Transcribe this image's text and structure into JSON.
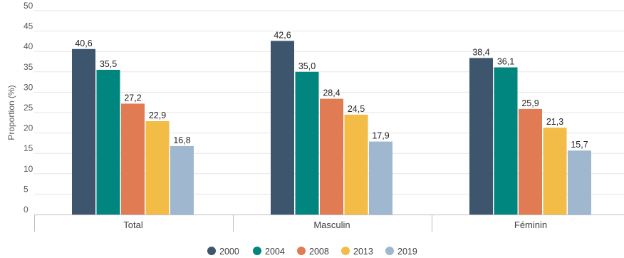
{
  "chart_data": {
    "type": "bar",
    "ylabel": "Proportion (%)",
    "ylim": [
      0,
      50
    ],
    "yticks": [
      0,
      5,
      10,
      15,
      20,
      25,
      30,
      35,
      40,
      45,
      50
    ],
    "grid": true,
    "legend_position": "bottom",
    "categories": [
      "Total",
      "Masculin",
      "Féminin"
    ],
    "series": [
      {
        "name": "2000",
        "color": "#3d566e",
        "values": [
          40.6,
          42.6,
          38.4
        ],
        "labels": [
          "40,6",
          "42,6",
          "38,4"
        ]
      },
      {
        "name": "2004",
        "color": "#00867f",
        "values": [
          35.5,
          35.0,
          36.1
        ],
        "labels": [
          "35,5",
          "35,0",
          "36,1"
        ]
      },
      {
        "name": "2008",
        "color": "#e07b54",
        "values": [
          27.2,
          28.4,
          25.9
        ],
        "labels": [
          "27,2",
          "28,4",
          "25,9"
        ]
      },
      {
        "name": "2013",
        "color": "#f2bc47",
        "values": [
          22.9,
          24.5,
          21.3
        ],
        "labels": [
          "22,9",
          "24,5",
          "21,3"
        ]
      },
      {
        "name": "2019",
        "color": "#9fb8cf",
        "values": [
          16.8,
          17.9,
          15.7
        ],
        "labels": [
          "16,8",
          "17,9",
          "15,7"
        ]
      }
    ]
  }
}
